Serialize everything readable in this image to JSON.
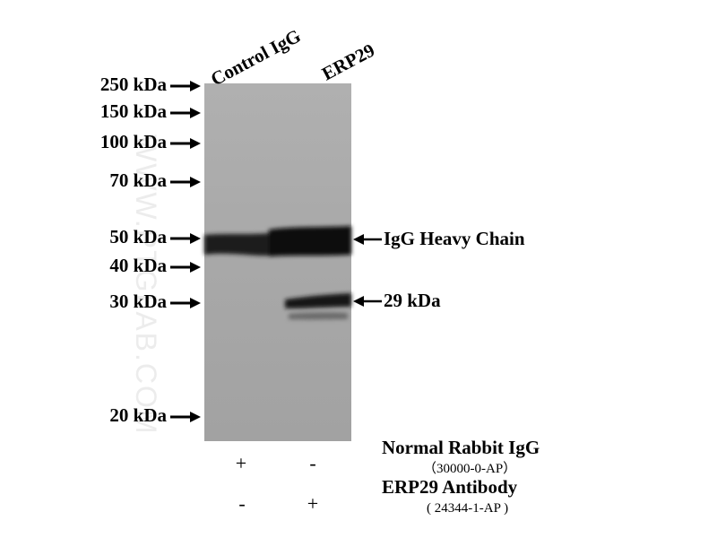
{
  "lanes": [
    "Control IgG",
    "ERP29"
  ],
  "markers": [
    "250 kDa",
    "150 kDa",
    "100 kDa",
    "70 kDa",
    "50 kDa",
    "40 kDa",
    "30 kDa",
    "20 kDa"
  ],
  "band_labels": [
    "IgG Heavy Chain",
    "29 kDa"
  ],
  "conditions": [
    {
      "reagent": "Normal Rabbit IgG",
      "catalog": "（30000-0-AP）",
      "lanes": [
        "+",
        "-"
      ]
    },
    {
      "reagent": "ERP29 Antibody",
      "catalog": "( 24344-1-AP )",
      "lanes": [
        "-",
        "+"
      ]
    }
  ],
  "watermark": "WWW.PTGLAB.COM"
}
